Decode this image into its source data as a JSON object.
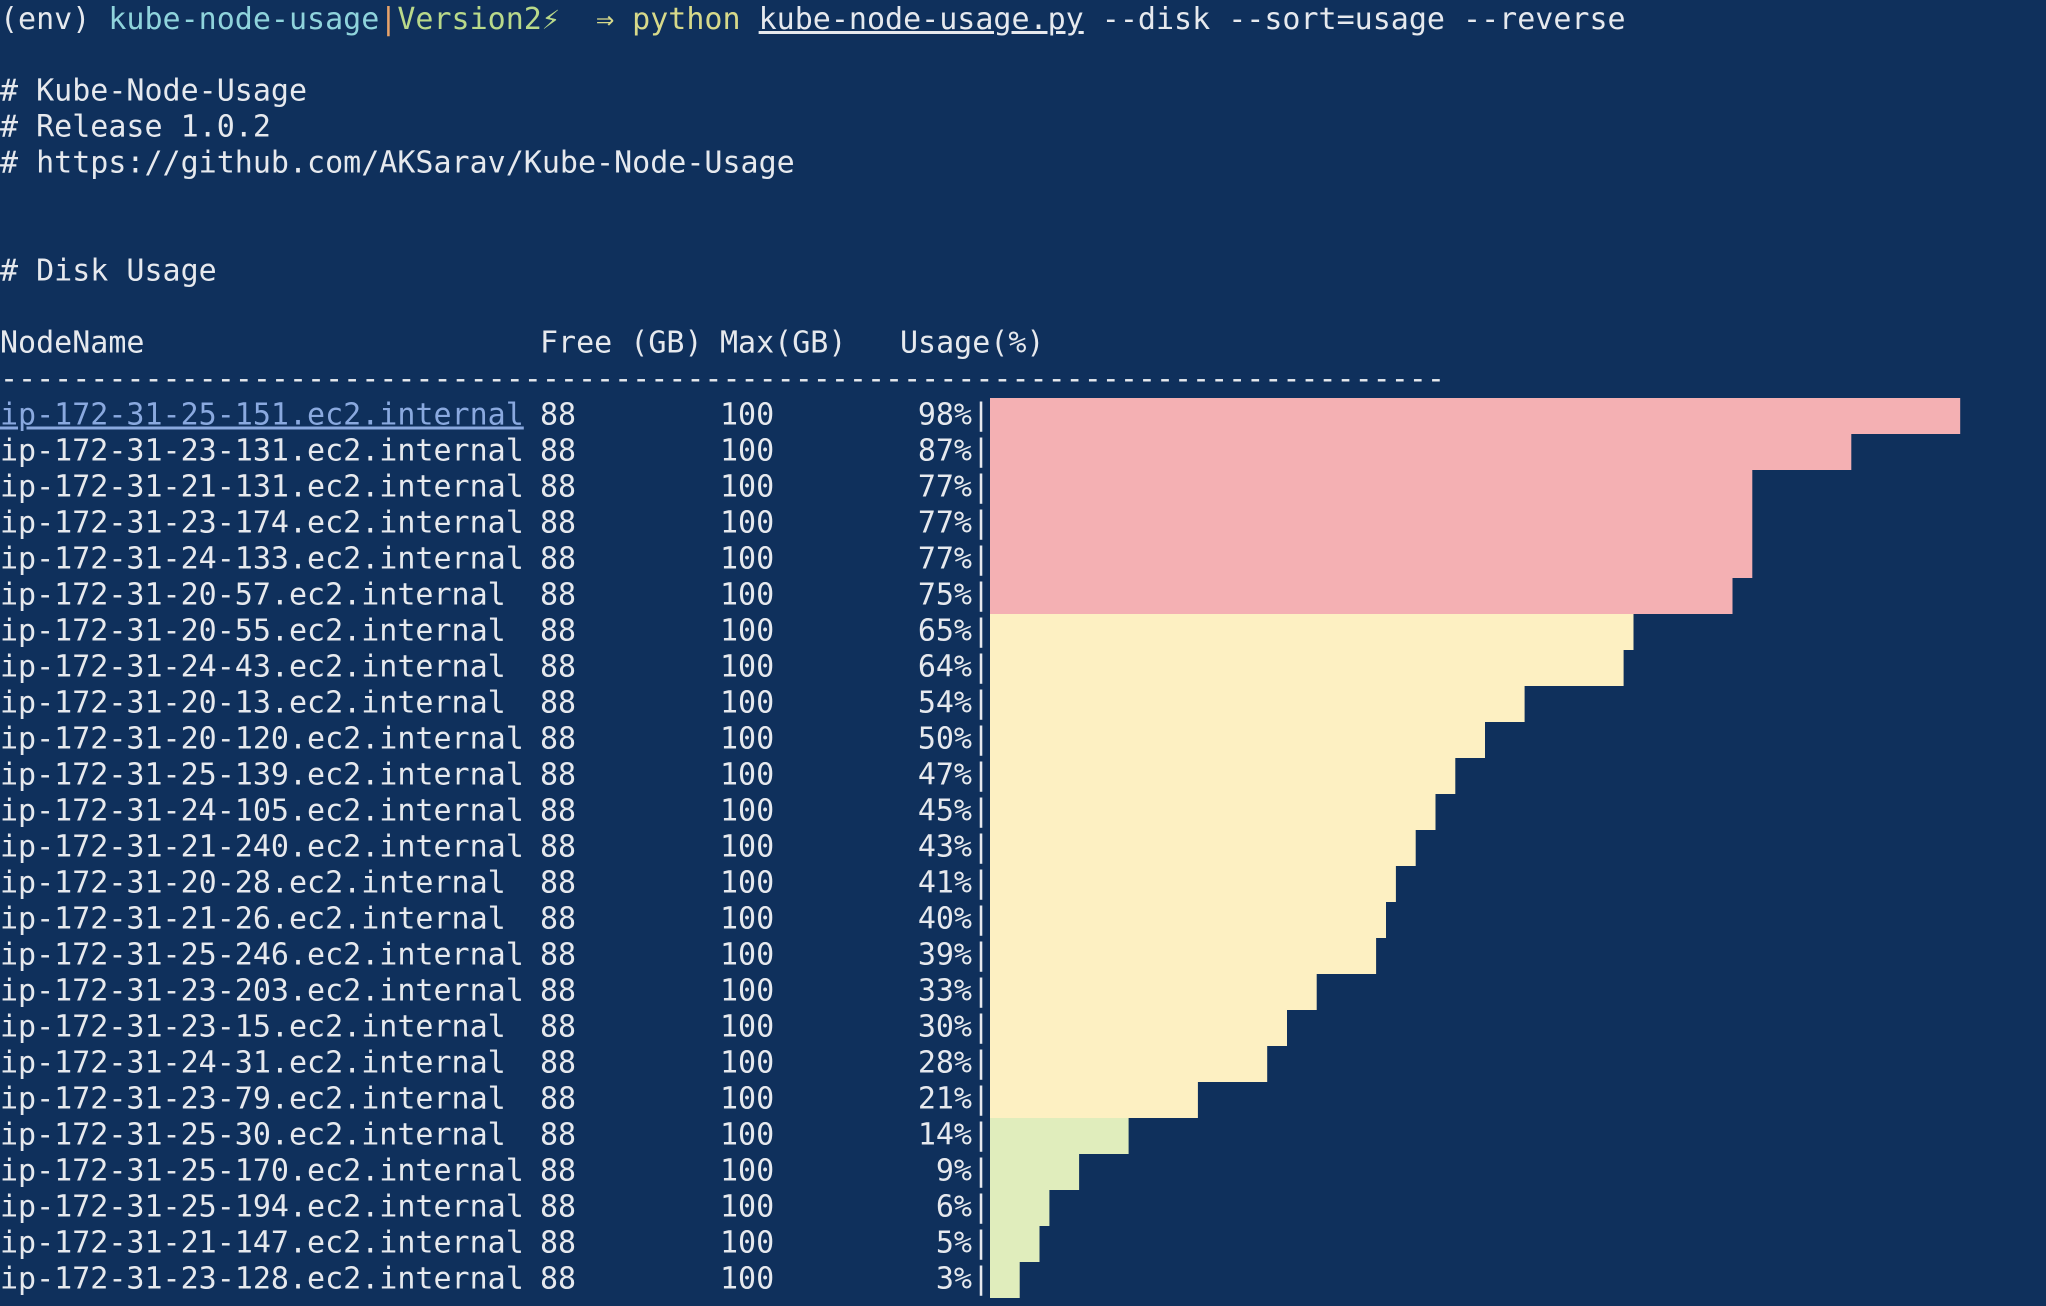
{
  "prompt": {
    "env": "(env)",
    "dir": "kube-node-usage",
    "sep": "|",
    "branch": "Version2⚡",
    "arrow": "⇒ python",
    "script": "kube-node-usage.py",
    "args": "--disk --sort=usage --reverse"
  },
  "banner": [
    "# Kube-Node-Usage",
    "# Release 1.0.2",
    "# https://github.com/AKSarav/Kube-Node-Usage"
  ],
  "section": "# Disk Usage",
  "header": {
    "node": "NodeName",
    "free": "Free (GB)",
    "max": "Max(GB)",
    "usage": "Usage(%)"
  },
  "separator": "--------------------------------------------------------------------------------",
  "bar_edge": "|",
  "rows": [
    {
      "node": "ip-172-31-25-151.ec2.internal",
      "free": 88,
      "max": 100,
      "usage": 98,
      "usage_label": "98%",
      "color": "#f4b0b3"
    },
    {
      "node": "ip-172-31-23-131.ec2.internal",
      "free": 88,
      "max": 100,
      "usage": 87,
      "usage_label": "87%",
      "color": "#f4b0b3"
    },
    {
      "node": "ip-172-31-21-131.ec2.internal",
      "free": 88,
      "max": 100,
      "usage": 77,
      "usage_label": "77%",
      "color": "#f4b0b3"
    },
    {
      "node": "ip-172-31-23-174.ec2.internal",
      "free": 88,
      "max": 100,
      "usage": 77,
      "usage_label": "77%",
      "color": "#f4b0b3"
    },
    {
      "node": "ip-172-31-24-133.ec2.internal",
      "free": 88,
      "max": 100,
      "usage": 77,
      "usage_label": "77%",
      "color": "#f4b0b3"
    },
    {
      "node": "ip-172-31-20-57.ec2.internal",
      "free": 88,
      "max": 100,
      "usage": 75,
      "usage_label": "75%",
      "color": "#f4b0b3"
    },
    {
      "node": "ip-172-31-20-55.ec2.internal",
      "free": 88,
      "max": 100,
      "usage": 65,
      "usage_label": "65%",
      "color": "#fdf0c2"
    },
    {
      "node": "ip-172-31-24-43.ec2.internal",
      "free": 88,
      "max": 100,
      "usage": 64,
      "usage_label": "64%",
      "color": "#fdf0c2"
    },
    {
      "node": "ip-172-31-20-13.ec2.internal",
      "free": 88,
      "max": 100,
      "usage": 54,
      "usage_label": "54%",
      "color": "#fdf0c2"
    },
    {
      "node": "ip-172-31-20-120.ec2.internal",
      "free": 88,
      "max": 100,
      "usage": 50,
      "usage_label": "50%",
      "color": "#fdf0c2"
    },
    {
      "node": "ip-172-31-25-139.ec2.internal",
      "free": 88,
      "max": 100,
      "usage": 47,
      "usage_label": "47%",
      "color": "#fdf0c2"
    },
    {
      "node": "ip-172-31-24-105.ec2.internal",
      "free": 88,
      "max": 100,
      "usage": 45,
      "usage_label": "45%",
      "color": "#fdf0c2"
    },
    {
      "node": "ip-172-31-21-240.ec2.internal",
      "free": 88,
      "max": 100,
      "usage": 43,
      "usage_label": "43%",
      "color": "#fdf0c2"
    },
    {
      "node": "ip-172-31-20-28.ec2.internal",
      "free": 88,
      "max": 100,
      "usage": 41,
      "usage_label": "41%",
      "color": "#fdf0c2"
    },
    {
      "node": "ip-172-31-21-26.ec2.internal",
      "free": 88,
      "max": 100,
      "usage": 40,
      "usage_label": "40%",
      "color": "#fdf0c2"
    },
    {
      "node": "ip-172-31-25-246.ec2.internal",
      "free": 88,
      "max": 100,
      "usage": 39,
      "usage_label": "39%",
      "color": "#fdf0c2"
    },
    {
      "node": "ip-172-31-23-203.ec2.internal",
      "free": 88,
      "max": 100,
      "usage": 33,
      "usage_label": "33%",
      "color": "#fdf0c2"
    },
    {
      "node": "ip-172-31-23-15.ec2.internal",
      "free": 88,
      "max": 100,
      "usage": 30,
      "usage_label": "30%",
      "color": "#fdf0c2"
    },
    {
      "node": "ip-172-31-24-31.ec2.internal",
      "free": 88,
      "max": 100,
      "usage": 28,
      "usage_label": "28%",
      "color": "#fdf0c2"
    },
    {
      "node": "ip-172-31-23-79.ec2.internal",
      "free": 88,
      "max": 100,
      "usage": 21,
      "usage_label": "21%",
      "color": "#fdf0c2"
    },
    {
      "node": "ip-172-31-25-30.ec2.internal",
      "free": 88,
      "max": 100,
      "usage": 14,
      "usage_label": "14%",
      "color": "#e0edbc"
    },
    {
      "node": "ip-172-31-25-170.ec2.internal",
      "free": 88,
      "max": 100,
      "usage": 9,
      "usage_label": "9%",
      "color": "#e0edbc"
    },
    {
      "node": "ip-172-31-25-194.ec2.internal",
      "free": 88,
      "max": 100,
      "usage": 6,
      "usage_label": "6%",
      "color": "#e0edbc"
    },
    {
      "node": "ip-172-31-21-147.ec2.internal",
      "free": 88,
      "max": 100,
      "usage": 5,
      "usage_label": "5%",
      "color": "#e0edbc"
    },
    {
      "node": "ip-172-31-23-128.ec2.internal",
      "free": 88,
      "max": 100,
      "usage": 3,
      "usage_label": "3%",
      "color": "#e0edbc"
    }
  ]
}
